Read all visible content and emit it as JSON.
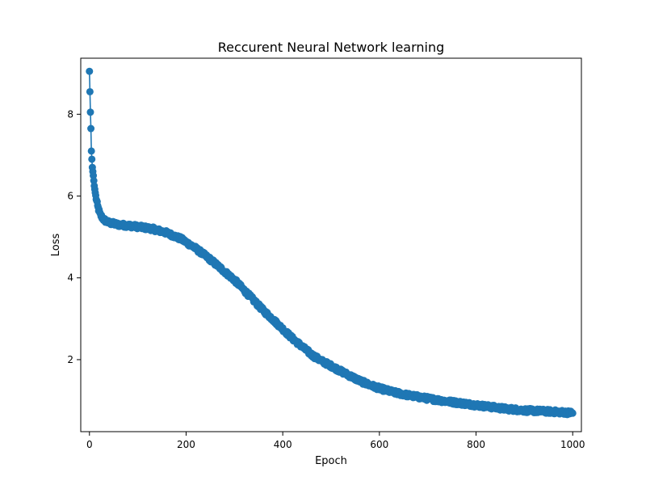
{
  "chart_data": {
    "type": "line",
    "title": "Reccurent Neural Network learning",
    "xlabel": "Epoch",
    "ylabel": "Loss",
    "xlim": [
      -18,
      1018
    ],
    "ylim": [
      0.24,
      9.37
    ],
    "xticks": [
      0,
      200,
      400,
      600,
      800,
      1000
    ],
    "yticks": [
      2,
      4,
      6,
      8
    ],
    "xtick_labels": [
      "0",
      "200",
      "400",
      "600",
      "800",
      "1000"
    ],
    "ytick_labels": [
      "2",
      "4",
      "6",
      "8"
    ],
    "grid": false,
    "marker": "circle",
    "series": [
      {
        "color": "#1f77b4",
        "x_range": [
          0,
          1000
        ],
        "points_count": 1001,
        "noise_amplitude": 0.05,
        "anchors": [
          [
            0,
            9.05
          ],
          [
            2,
            8.05
          ],
          [
            3,
            7.65
          ],
          [
            4,
            7.1
          ],
          [
            6,
            6.7
          ],
          [
            8,
            6.5
          ],
          [
            10,
            6.25
          ],
          [
            13,
            6.0
          ],
          [
            17,
            5.75
          ],
          [
            22,
            5.55
          ],
          [
            30,
            5.42
          ],
          [
            40,
            5.35
          ],
          [
            60,
            5.3
          ],
          [
            80,
            5.28
          ],
          [
            100,
            5.25
          ],
          [
            130,
            5.2
          ],
          [
            160,
            5.1
          ],
          [
            190,
            4.95
          ],
          [
            220,
            4.72
          ],
          [
            250,
            4.45
          ],
          [
            280,
            4.15
          ],
          [
            300,
            3.95
          ],
          [
            320,
            3.7
          ],
          [
            340,
            3.45
          ],
          [
            360,
            3.2
          ],
          [
            380,
            2.98
          ],
          [
            400,
            2.75
          ],
          [
            420,
            2.52
          ],
          [
            440,
            2.32
          ],
          [
            460,
            2.12
          ],
          [
            480,
            1.97
          ],
          [
            500,
            1.85
          ],
          [
            520,
            1.72
          ],
          [
            540,
            1.6
          ],
          [
            560,
            1.48
          ],
          [
            580,
            1.38
          ],
          [
            600,
            1.3
          ],
          [
            630,
            1.2
          ],
          [
            660,
            1.13
          ],
          [
            700,
            1.05
          ],
          [
            740,
            0.98
          ],
          [
            780,
            0.92
          ],
          [
            820,
            0.86
          ],
          [
            860,
            0.8
          ],
          [
            900,
            0.76
          ],
          [
            940,
            0.74
          ],
          [
            970,
            0.72
          ],
          [
            1000,
            0.7
          ]
        ]
      }
    ]
  }
}
